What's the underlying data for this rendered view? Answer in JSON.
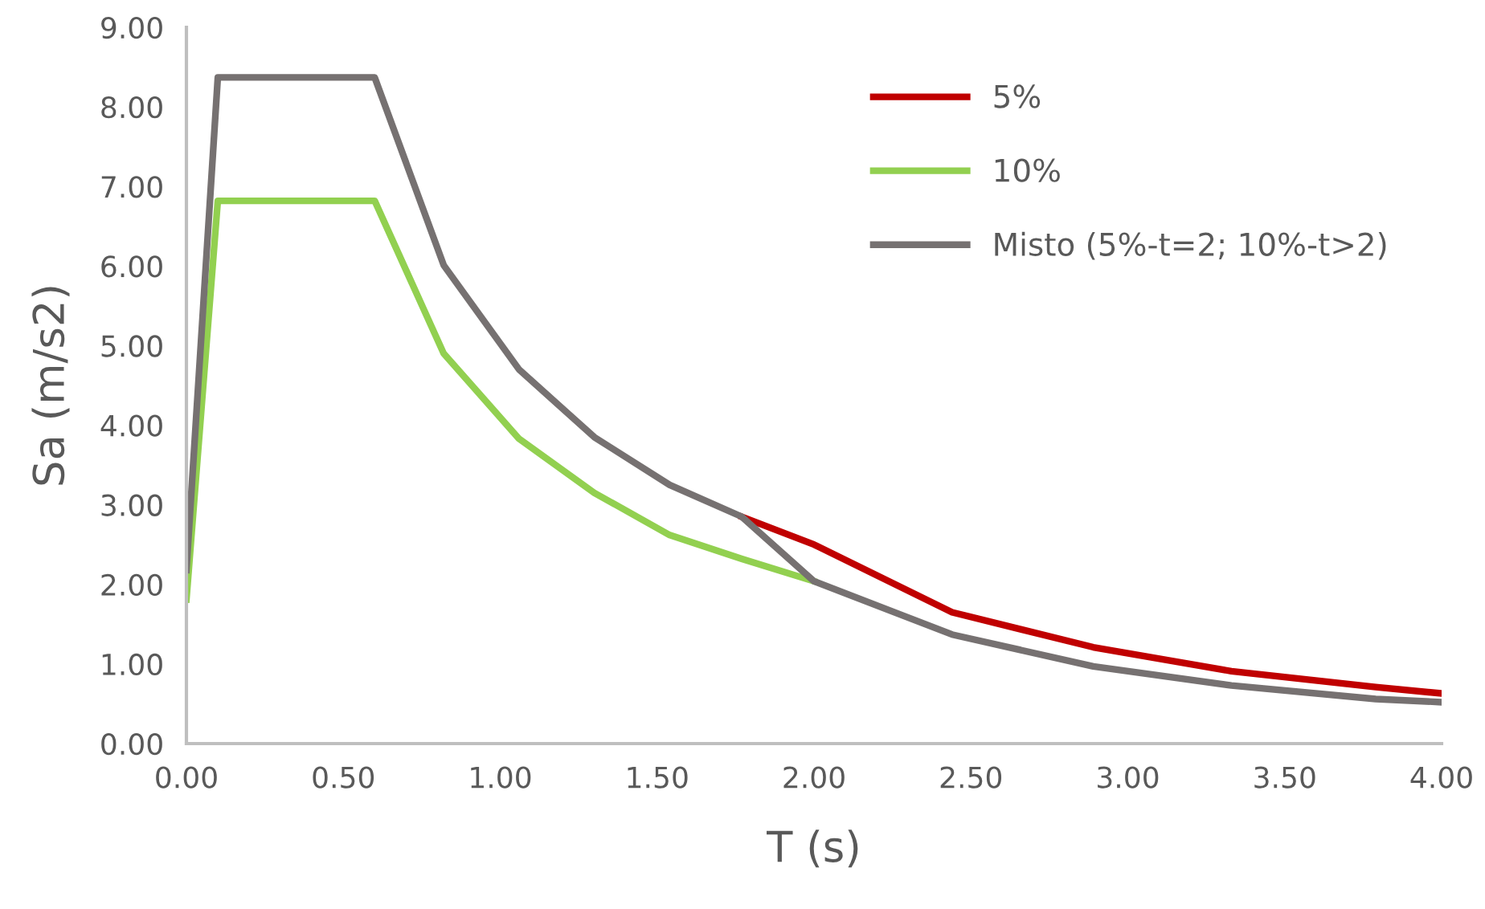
{
  "chart_data": {
    "type": "line",
    "xlabel": "T (s)",
    "ylabel": "Sa (m/s2)",
    "x": [
      0,
      0.1,
      0.6,
      0.82,
      1.06,
      1.3,
      1.54,
      1.77,
      2.0,
      2.44,
      2.89,
      3.33,
      3.79,
      4.0
    ],
    "series": [
      {
        "name": "5%",
        "color": "#c00000",
        "values": [
          null,
          null,
          null,
          null,
          null,
          null,
          null,
          2.85,
          2.5,
          1.65,
          1.21,
          0.91,
          0.71,
          0.63
        ]
      },
      {
        "name": "10%",
        "color": "#92d050",
        "values": [
          1.81,
          6.82,
          6.82,
          4.9,
          3.83,
          3.15,
          2.62,
          2.32,
          2.04,
          null,
          null,
          null,
          null,
          null
        ]
      },
      {
        "name": "Misto (5%-t=2; 10%-t>2)",
        "color": "#767171",
        "values": [
          2.18,
          8.37,
          8.37,
          6.01,
          4.7,
          3.85,
          3.25,
          2.85,
          2.04,
          1.37,
          0.97,
          0.73,
          0.56,
          0.52
        ]
      }
    ],
    "xlim": [
      0,
      4
    ],
    "xticks": [
      {
        "value": 0,
        "label": "0.00"
      },
      {
        "value": 0.5,
        "label": "0.50"
      },
      {
        "value": 1,
        "label": "1.00"
      },
      {
        "value": 1.5,
        "label": "1.50"
      },
      {
        "value": 2,
        "label": "2.00"
      },
      {
        "value": 2.5,
        "label": "2.50"
      },
      {
        "value": 3,
        "label": "3.00"
      },
      {
        "value": 3.5,
        "label": "3.50"
      },
      {
        "value": 4,
        "label": "4.00"
      }
    ],
    "ylim": [
      0,
      9
    ],
    "yticks": [
      {
        "value": 0,
        "label": "0.00"
      },
      {
        "value": 1,
        "label": "1.00"
      },
      {
        "value": 2,
        "label": "2.00"
      },
      {
        "value": 3,
        "label": "3.00"
      },
      {
        "value": 4,
        "label": "4.00"
      },
      {
        "value": 5,
        "label": "5.00"
      },
      {
        "value": 6,
        "label": "6.00"
      },
      {
        "value": 7,
        "label": "7.00"
      },
      {
        "value": 8,
        "label": "8.00"
      },
      {
        "value": 9,
        "label": "9.00"
      }
    ],
    "grid": false,
    "legend": "top right",
    "marker": "none",
    "line_style": "solid"
  }
}
